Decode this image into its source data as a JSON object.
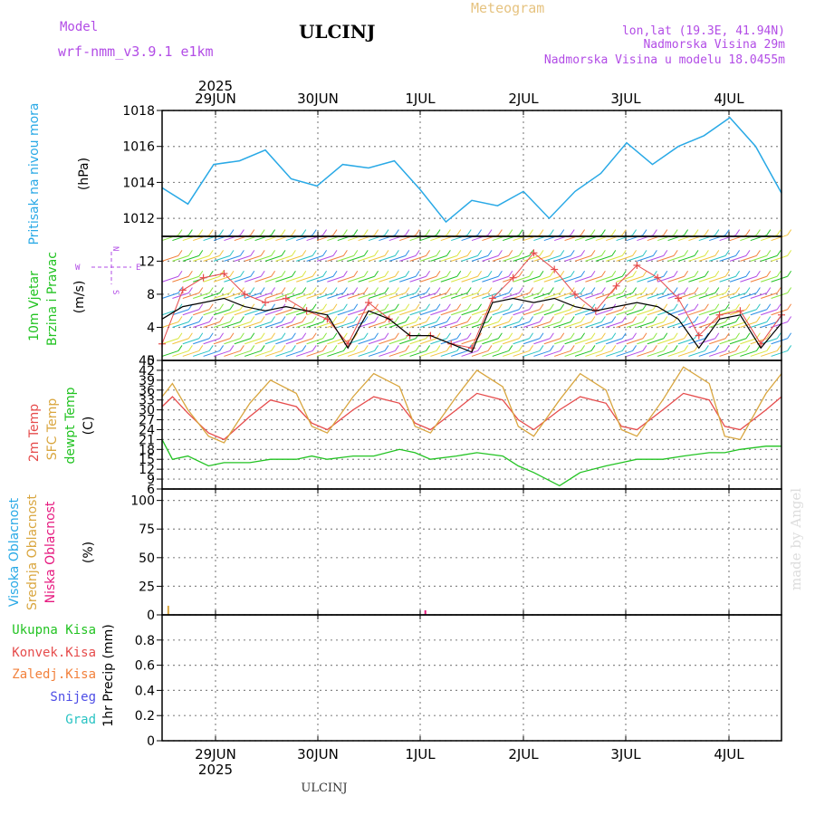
{
  "header": {
    "model_label": "Model",
    "model_name": "wrf-nmm_v3.9.1 e1km",
    "station": "ULCINJ",
    "meteogram": "Meteogram",
    "lonlat": "lon,lat (19.3E, 41.94N)",
    "elevation": "Nadmorska Visina 29m",
    "model_elevation": "Nadmorska Visina u modelu 18.0455m",
    "footer_station": "ULCINJ",
    "watermark": "made by Angel",
    "year": "2025"
  },
  "colors": {
    "pressure": "#29a9e6",
    "wind_label": "#22c322",
    "temp2m": "#e64c4c",
    "sfc_temp": "#d9a63f",
    "dewpt": "#22c322",
    "cloud_high": "#29a9e6",
    "cloud_mid": "#d9a63f",
    "cloud_low": "#e6197f",
    "precip_total": "#22c322",
    "precip_conv": "#e64c4c",
    "precip_frz": "#f2813c",
    "precip_snow": "#4c4ce6",
    "precip_grad": "#29c3c3",
    "purple": "#b24ce6",
    "header_purple": "#b24ce6",
    "meteogram_title": "#e6c380"
  },
  "chart_data": [
    {
      "type": "line",
      "panel": "pressure",
      "title": "",
      "ylabel": "Pritisak na nivou mora",
      "unit": "(hPa)",
      "ylim": [
        1011,
        1018
      ],
      "yticks": [
        1012,
        1014,
        1016,
        1018
      ],
      "xlabels": [
        "29JUN",
        "30JUN",
        "1JUL",
        "2JUL",
        "3JUL",
        "4JUL"
      ],
      "series": [
        {
          "x": [
            0,
            0.25,
            0.5,
            0.75,
            1,
            1.25,
            1.5,
            1.75,
            2,
            2.25,
            2.5,
            2.75,
            3,
            3.25,
            3.5,
            3.75,
            4,
            4.25,
            4.5,
            4.75,
            5,
            5.25,
            5.5,
            5.75,
            6
          ],
          "values": [
            1013.7,
            1012.8,
            1015.0,
            1015.2,
            1015.8,
            1014.2,
            1013.8,
            1015.0,
            1014.8,
            1015.2,
            1013.6,
            1011.8,
            1013.0,
            1012.7,
            1013.5,
            1012.0,
            1013.5,
            1014.5,
            1016.2,
            1015.0,
            1016.0,
            1016.6,
            1017.6,
            1016.0,
            1013.4
          ]
        }
      ]
    },
    {
      "type": "line",
      "panel": "wind",
      "ylabel": "10m Vjetar Brzina i Pravac",
      "unit": "(m/s)",
      "ylim": [
        0,
        15
      ],
      "yticks": [
        0,
        4,
        8,
        12
      ],
      "compass": {
        "n": "N",
        "s": "S",
        "w": "W",
        "e": "E"
      },
      "series": [
        {
          "name": "",
          "x": [
            0,
            0.2,
            0.4,
            0.6,
            0.8,
            1,
            1.2,
            1.4,
            1.6,
            1.8,
            2,
            2.2,
            2.4,
            2.6,
            2.8,
            3,
            3.2,
            3.4,
            3.6,
            3.8,
            4,
            4.2,
            4.4,
            4.6,
            4.8,
            5,
            5.2,
            5.4,
            5.6,
            5.8,
            6
          ],
          "values": [
            2.0,
            8.5,
            10.0,
            10.5,
            8.0,
            7.0,
            7.5,
            6.0,
            5.0,
            2.0,
            7.0,
            5.0,
            3.0,
            3.0,
            2.0,
            1.5,
            7.5,
            10.0,
            13.0,
            11.0,
            8.0,
            6.0,
            9.0,
            11.5,
            10.0,
            7.5,
            3.0,
            5.5,
            6.0,
            2.0,
            5.5
          ]
        },
        {
          "name": "",
          "x": [
            0,
            0.2,
            0.4,
            0.6,
            0.8,
            1,
            1.2,
            1.4,
            1.6,
            1.8,
            2,
            2.2,
            2.4,
            2.6,
            2.8,
            3,
            3.2,
            3.4,
            3.6,
            3.8,
            4,
            4.2,
            4.4,
            4.6,
            4.8,
            5,
            5.2,
            5.4,
            5.6,
            5.8,
            6
          ],
          "values": [
            5.0,
            6.5,
            7.0,
            7.5,
            6.5,
            6.0,
            6.5,
            6.0,
            5.5,
            1.5,
            6.0,
            5.0,
            3.0,
            3.0,
            2.0,
            1.0,
            7.0,
            7.5,
            7.0,
            7.5,
            6.5,
            6.0,
            6.5,
            7.0,
            6.5,
            5.0,
            1.5,
            5.0,
            5.5,
            1.5,
            4.5
          ]
        }
      ]
    },
    {
      "type": "line",
      "panel": "temperature",
      "ylabel_lines": [
        "2m Temp",
        "SFC Temp",
        "dewpt Temp"
      ],
      "unit": "(C)",
      "ylim": [
        6,
        45
      ],
      "yticks": [
        6,
        9,
        12,
        15,
        18,
        21,
        24,
        27,
        30,
        33,
        36,
        39,
        42,
        45
      ],
      "series": [
        {
          "name": "2m Temp",
          "x": [
            0,
            0.1,
            0.25,
            0.45,
            0.6,
            0.85,
            1.05,
            1.3,
            1.45,
            1.6,
            1.85,
            2.05,
            2.3,
            2.45,
            2.6,
            2.85,
            3.05,
            3.3,
            3.45,
            3.6,
            3.85,
            4.05,
            4.3,
            4.45,
            4.6,
            4.85,
            5.05,
            5.3,
            5.45,
            5.6,
            5.85,
            6
          ],
          "values": [
            31.0,
            34.0,
            29.0,
            23.0,
            21.0,
            28.0,
            33.0,
            31.0,
            26.0,
            24.0,
            30.0,
            34.0,
            32.0,
            26.0,
            24.0,
            30.0,
            35.0,
            33.0,
            27.0,
            24.0,
            30.0,
            34.0,
            32.0,
            25.0,
            24.0,
            30.0,
            35.0,
            33.0,
            25.0,
            24.0,
            30.0,
            34.0
          ]
        },
        {
          "name": "SFC Temp",
          "x": [
            0,
            0.1,
            0.25,
            0.45,
            0.6,
            0.85,
            1.05,
            1.3,
            1.45,
            1.6,
            1.85,
            2.05,
            2.3,
            2.45,
            2.6,
            2.85,
            3.05,
            3.3,
            3.45,
            3.6,
            3.85,
            4.05,
            4.3,
            4.45,
            4.6,
            4.85,
            5.05,
            5.3,
            5.45,
            5.6,
            5.85,
            6
          ],
          "values": [
            34.0,
            38.0,
            30.0,
            22.0,
            20.0,
            32.0,
            39.0,
            35.0,
            25.0,
            23.0,
            34.0,
            41.0,
            37.0,
            25.0,
            23.0,
            34.0,
            42.0,
            37.0,
            25.0,
            22.0,
            33.0,
            41.0,
            36.0,
            24.0,
            22.0,
            33.0,
            43.0,
            38.0,
            22.0,
            21.0,
            35.0,
            41.0
          ]
        },
        {
          "name": "dewpt Temp",
          "x": [
            0,
            0.1,
            0.25,
            0.45,
            0.6,
            0.85,
            1.05,
            1.3,
            1.45,
            1.6,
            1.85,
            2.05,
            2.3,
            2.45,
            2.6,
            2.85,
            3.05,
            3.3,
            3.45,
            3.6,
            3.85,
            4.05,
            4.3,
            4.45,
            4.6,
            4.85,
            5.05,
            5.3,
            5.45,
            5.6,
            5.85,
            6
          ],
          "values": [
            21.0,
            15.0,
            16.0,
            13.0,
            14.0,
            14.0,
            15.0,
            15.0,
            16.0,
            15.0,
            16.0,
            16.0,
            18.0,
            17.0,
            15.0,
            16.0,
            17.0,
            16.0,
            13.0,
            11.0,
            7.0,
            11.0,
            13.0,
            14.0,
            15.0,
            15.0,
            16.0,
            17.0,
            17.0,
            18.0,
            19.0,
            19.0
          ]
        }
      ]
    },
    {
      "type": "bar",
      "panel": "clouds",
      "ylabel_lines": [
        "Visoka Oblacnost",
        "Srednja Oblacnost",
        "Niska Oblacnost"
      ],
      "unit": "(%)",
      "ylim": [
        0,
        110
      ],
      "yticks": [
        0,
        25,
        50,
        75,
        100
      ],
      "series": [
        {
          "name": "Srednja Oblacnost",
          "x": [
            0.06
          ],
          "values": [
            8
          ]
        },
        {
          "name": "Niska Oblacnost",
          "x": [
            2.55
          ],
          "values": [
            4
          ]
        }
      ]
    },
    {
      "type": "bar",
      "panel": "precip",
      "ylabel_lines": [
        "Ukupna Kisa",
        "Konvek.Kisa",
        "Zaledj.Kisa",
        "Snijeg",
        "Grad"
      ],
      "unit": "1hr Precip (mm)",
      "ylim": [
        0,
        1.0
      ],
      "yticks": [
        0,
        0.2,
        0.4,
        0.6,
        0.8
      ],
      "series": []
    }
  ]
}
